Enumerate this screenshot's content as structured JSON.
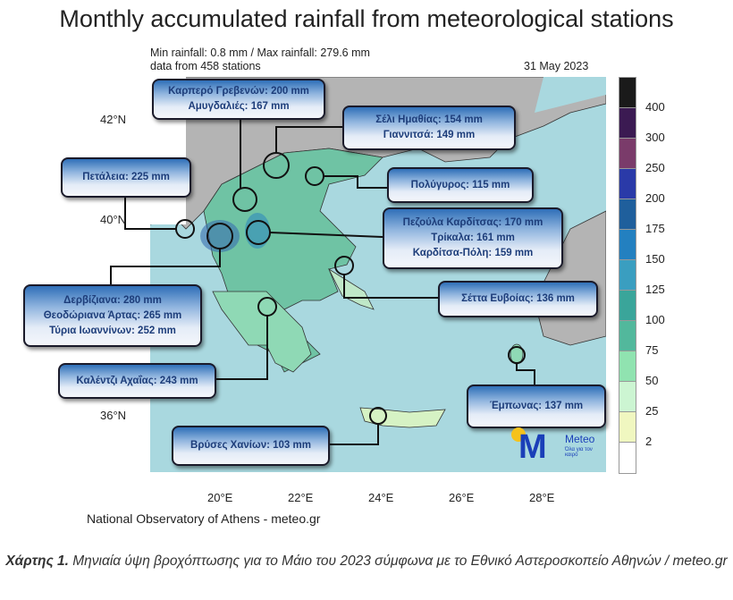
{
  "title": "Monthly accumulated rainfall from meteorological stations",
  "subtitle": {
    "line1": "Min rainfall: 0.8 mm / Max rainfall: 279.6 mm",
    "line2": "data from 458 stations",
    "date": "31 May 2023"
  },
  "axes": {
    "lat": [
      "42°N",
      "40°N",
      "36°N"
    ],
    "lon": [
      "20°E",
      "22°E",
      "24°E",
      "26°E",
      "28°E"
    ]
  },
  "colorbar": {
    "labels": [
      "400",
      "300",
      "250",
      "200",
      "175",
      "150",
      "125",
      "100",
      "75",
      "50",
      "25",
      "2"
    ],
    "colors": [
      "#1a1a1a",
      "#3b1a52",
      "#7a3b6a",
      "#2a3aa8",
      "#1f5f9c",
      "#2380c0",
      "#3a9ec0",
      "#3aa59a",
      "#52b89c",
      "#90e3b0",
      "#ccf5d2",
      "#f0f7c0",
      "#ffffff"
    ]
  },
  "callouts": [
    {
      "lines": [
        "Καρπερό Γρεβενών: 200 mm",
        "Αμυγδαλιές: 167 mm"
      ]
    },
    {
      "lines": [
        "Σέλι Ημαθίας: 154 mm",
        "Γιαννιτσά: 149 mm"
      ]
    },
    {
      "lines": [
        "Πετάλεια: 225 mm"
      ]
    },
    {
      "lines": [
        "Πολύγυρος: 115 mm"
      ]
    },
    {
      "lines": [
        "Πεζούλα Καρδίτσας: 170 mm",
        "Τρίκαλα: 161 mm",
        "Καρδίτσα-Πόλη: 159 mm"
      ]
    },
    {
      "lines": [
        "Σέττα Ευβοίας: 136 mm"
      ]
    },
    {
      "lines": [
        "Δερβίζιανα: 280 mm",
        "Θεοδώριανα Άρτας: 265 mm",
        "Τύρια Ιωαννίνων: 252 mm"
      ]
    },
    {
      "lines": [
        "Καλέντζι Αχαΐας: 243 mm"
      ]
    },
    {
      "lines": [
        "Έμπωνας: 137 mm"
      ]
    },
    {
      "lines": [
        "Βρύσες Χανίων: 103 mm"
      ]
    }
  ],
  "logo": {
    "name": "Meteo",
    "tagline": "Όλα για τον καιρό",
    "colors": {
      "m": "#1a3fb8",
      "sun": "#f5c21b"
    }
  },
  "credit": "National Observatory of Athens - meteo.gr",
  "caption": {
    "bold": "Χάρτης 1.",
    "text": " Μηνιαία ύψη βροχόπτωσης για το Μάιο του 2023 σύμφωνα με το Εθνικό Αστεροσκοπείο Αθηνών / meteo.gr"
  }
}
